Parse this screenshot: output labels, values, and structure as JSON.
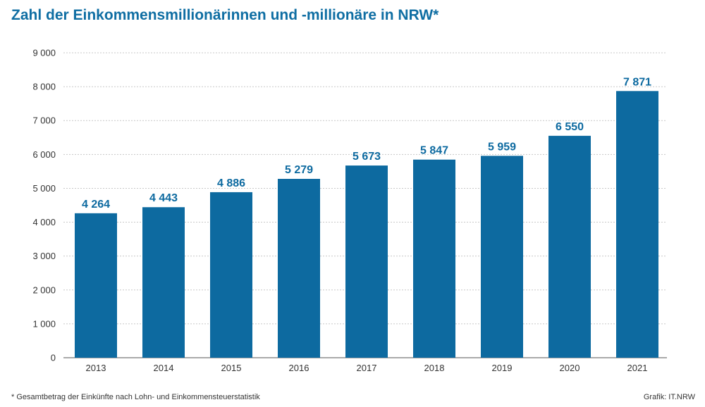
{
  "title": "Zahl der Einkommensmillionärinnen und -millionäre in NRW*",
  "footnote": "* Gesamtbetrag der Einkünfte nach Lohn- und Einkommensteuerstatistik",
  "credit": "Grafik: IT.NRW",
  "colors": {
    "bar": "#0d6aa0",
    "label": "#0d6aa0",
    "title": "#0f6ea3",
    "grid": "#c8c8c8",
    "axis": "#555555"
  },
  "chart_data": {
    "type": "bar",
    "title": "Zahl der Einkommensmillionärinnen und -millionäre in NRW*",
    "categories": [
      "2013",
      "2014",
      "2015",
      "2016",
      "2017",
      "2018",
      "2019",
      "2020",
      "2021"
    ],
    "values": [
      4264,
      4443,
      4886,
      5279,
      5673,
      5847,
      5959,
      6550,
      7871
    ],
    "value_labels": [
      "4 264",
      "4 443",
      "4 886",
      "5 279",
      "5 673",
      "5 847",
      "5 959",
      "6 550",
      "7 871"
    ],
    "yticks": [
      0,
      1000,
      2000,
      3000,
      4000,
      5000,
      6000,
      7000,
      8000,
      9000
    ],
    "ytick_labels": [
      "0",
      "1 000",
      "2 000",
      "3 000",
      "4 000",
      "5 000",
      "6 000",
      "7 000",
      "8 000",
      "9 000"
    ],
    "xlabel": "",
    "ylabel": "",
    "ylim": [
      0,
      9000
    ],
    "grid": true
  }
}
